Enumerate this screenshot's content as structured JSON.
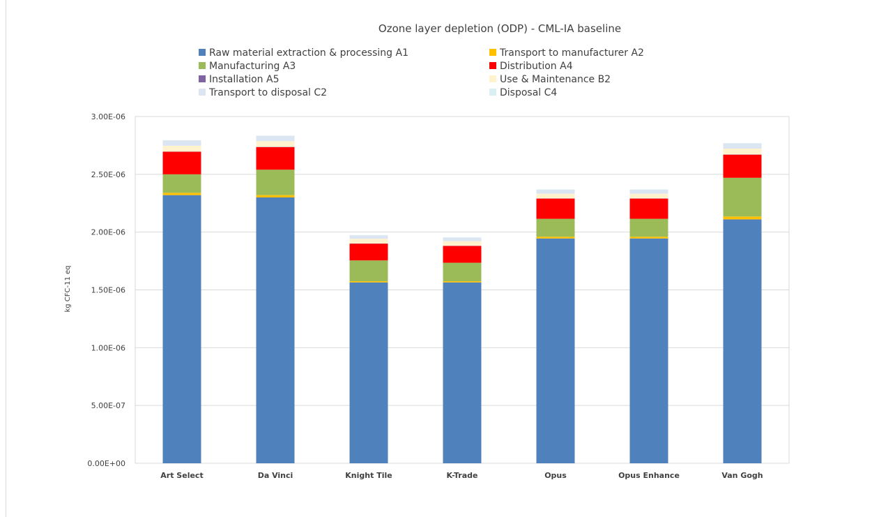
{
  "chart_data": {
    "type": "bar",
    "stacked": true,
    "title": "Ozone layer depletion (ODP) - CML-IA baseline",
    "xlabel": "",
    "ylabel": "kg CFC-11 eq",
    "ylim": [
      0,
      3e-06
    ],
    "yticks": [
      0,
      5e-07,
      1e-06,
      1.5e-06,
      2e-06,
      2.5e-06,
      3e-06
    ],
    "ytick_labels": [
      "0.00E+00",
      "5.00E-07",
      "1.00E-06",
      "1.50E-06",
      "2.00E-06",
      "2.50E-06",
      "3.00E-06"
    ],
    "grid": true,
    "legend_position": "top",
    "categories": [
      "Art Select",
      "Da Vinci",
      "Knight Tile",
      "K-Trade",
      "Opus",
      "Opus Enhance",
      "Van Gogh"
    ],
    "series": [
      {
        "name": "Raw material extraction & processing A1",
        "color": "#4f81bd",
        "values": [
          2.32e-06,
          2.3e-06,
          1.565e-06,
          1.565e-06,
          1.945e-06,
          1.945e-06,
          2.11e-06
        ]
      },
      {
        "name": "Transport to manufacturer A2",
        "color": "#ffc000",
        "values": [
          2e-08,
          2e-08,
          1e-08,
          1e-08,
          1.5e-08,
          1.5e-08,
          2.5e-08
        ]
      },
      {
        "name": "Manufacturing A3",
        "color": "#9bbb59",
        "values": [
          1.6e-07,
          2.2e-07,
          1.8e-07,
          1.6e-07,
          1.55e-07,
          1.55e-07,
          3.35e-07
        ]
      },
      {
        "name": "Distribution A4",
        "color": "#ff0000",
        "values": [
          1.95e-07,
          1.95e-07,
          1.45e-07,
          1.45e-07,
          1.75e-07,
          1.75e-07,
          2e-07
        ]
      },
      {
        "name": "Installation A5",
        "color": "#8064a2",
        "values": [
          2e-09,
          2e-09,
          2e-09,
          2e-09,
          2e-09,
          2e-09,
          2e-09
        ]
      },
      {
        "name": "Use & Maintenance B2",
        "color": "#fff2cc",
        "values": [
          5e-08,
          5e-08,
          4e-08,
          4e-08,
          4e-08,
          4e-08,
          5e-08
        ]
      },
      {
        "name": "Transport to disposal C2",
        "color": "#dce6f2",
        "values": [
          4.5e-08,
          4.5e-08,
          3e-08,
          3e-08,
          3.5e-08,
          3.5e-08,
          4.5e-08
        ]
      },
      {
        "name": "Disposal C4",
        "color": "#daeef3",
        "values": [
          3e-09,
          3e-09,
          3e-09,
          3e-09,
          3e-09,
          3e-09,
          3e-09
        ]
      }
    ]
  }
}
